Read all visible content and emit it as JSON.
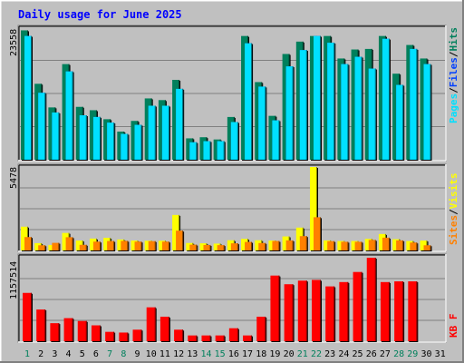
{
  "chart_data": [
    {
      "type": "bar",
      "title": "Daily usage for June 2025",
      "panel": "hits-files-pages",
      "ymax_label": "23558",
      "ymax": 23558,
      "categories": [
        "1",
        "2",
        "3",
        "4",
        "5",
        "6",
        "7",
        "8",
        "9",
        "10",
        "11",
        "12",
        "13",
        "14",
        "15",
        "16",
        "17",
        "18",
        "19",
        "20",
        "21",
        "22",
        "23",
        "24",
        "25",
        "26",
        "27",
        "28",
        "29",
        "30",
        "31"
      ],
      "weekend_days": [
        "1",
        "7",
        "8",
        "14",
        "15",
        "21",
        "22",
        "28",
        "29"
      ],
      "series": [
        {
          "name": "Hits",
          "color": "#00805c",
          "values": [
            23000,
            13500,
            9300,
            17000,
            9400,
            8800,
            7200,
            5000,
            6900,
            10900,
            10600,
            14200,
            3800,
            4000,
            3600,
            7600,
            22000,
            13800,
            7800,
            18800,
            21000,
            22000,
            22000,
            18000,
            19600,
            19700,
            22000,
            15300,
            20400,
            18000,
            null
          ]
        },
        {
          "name": "Files",
          "color": "#0040ff",
          "values": [
            22000,
            11900,
            8400,
            15700,
            7900,
            7600,
            6600,
            4600,
            6200,
            9600,
            9600,
            12600,
            3100,
            3300,
            3300,
            6700,
            20700,
            13000,
            7000,
            16600,
            19500,
            22000,
            20800,
            17000,
            18300,
            16200,
            21500,
            13300,
            19700,
            17000,
            null
          ]
        },
        {
          "name": "Pages",
          "color": "#00e0ff",
          "values": [
            22000,
            11900,
            8400,
            15700,
            7900,
            7600,
            6600,
            4600,
            6200,
            9600,
            9600,
            12600,
            3100,
            3300,
            3300,
            6700,
            20700,
            13000,
            7000,
            16600,
            19500,
            22000,
            20800,
            17000,
            18300,
            16200,
            21500,
            13300,
            19700,
            17000,
            null
          ]
        }
      ]
    },
    {
      "type": "bar",
      "panel": "visits-sites",
      "ymax_label": "5478",
      "ymax": 5478,
      "categories": [
        "1",
        "2",
        "3",
        "4",
        "5",
        "6",
        "7",
        "8",
        "9",
        "10",
        "11",
        "12",
        "13",
        "14",
        "15",
        "16",
        "17",
        "18",
        "19",
        "20",
        "21",
        "22",
        "23",
        "24",
        "25",
        "26",
        "27",
        "28",
        "29",
        "30",
        "31"
      ],
      "series": [
        {
          "name": "Visits",
          "color": "#ffff00",
          "values": [
            1560,
            480,
            360,
            1150,
            650,
            780,
            830,
            720,
            650,
            640,
            640,
            2330,
            490,
            470,
            450,
            670,
            760,
            670,
            650,
            920,
            1500,
            5478,
            660,
            620,
            620,
            760,
            1080,
            740,
            620,
            650,
            null
          ]
        },
        {
          "name": "Sites",
          "color": "#ff8000",
          "values": [
            880,
            340,
            500,
            870,
            370,
            580,
            620,
            630,
            580,
            610,
            580,
            1300,
            380,
            360,
            350,
            470,
            560,
            490,
            620,
            660,
            940,
            2180,
            610,
            570,
            570,
            690,
            840,
            660,
            520,
            340,
            null
          ]
        }
      ]
    },
    {
      "type": "bar",
      "panel": "kbytes",
      "ymax_label": "1157514",
      "ymax": 1157514,
      "categories": [
        "1",
        "2",
        "3",
        "4",
        "5",
        "6",
        "7",
        "8",
        "9",
        "10",
        "11",
        "12",
        "13",
        "14",
        "15",
        "16",
        "17",
        "18",
        "19",
        "20",
        "21",
        "22",
        "23",
        "24",
        "25",
        "26",
        "27",
        "28",
        "29",
        "30",
        "31"
      ],
      "series": [
        {
          "name": "KBytes",
          "color": "#ff0000",
          "values": [
            670000,
            440000,
            250000,
            320000,
            280000,
            220000,
            130000,
            120000,
            160000,
            470000,
            340000,
            160000,
            80000,
            80000,
            80000,
            180000,
            80000,
            340000,
            910000,
            790000,
            840000,
            850000,
            760000,
            820000,
            960000,
            1157514,
            820000,
            830000,
            830000,
            null,
            null
          ]
        }
      ]
    }
  ],
  "legend": {
    "panel1": {
      "pages": "Pages",
      "sep1": "/",
      "files": "Files",
      "sep2": "/",
      "hits": "Hits"
    },
    "panel2": {
      "sites": "Sites",
      "sep": "/",
      "visits": "Visits"
    },
    "panel3": {
      "kb": "KB",
      "sep": " ",
      "f": "F"
    }
  },
  "colors": {
    "background": "#c0c0c0",
    "title": "#0000ff",
    "weekend_label": "#00805c",
    "weekday_label": "#000080",
    "grid": "#808080"
  }
}
